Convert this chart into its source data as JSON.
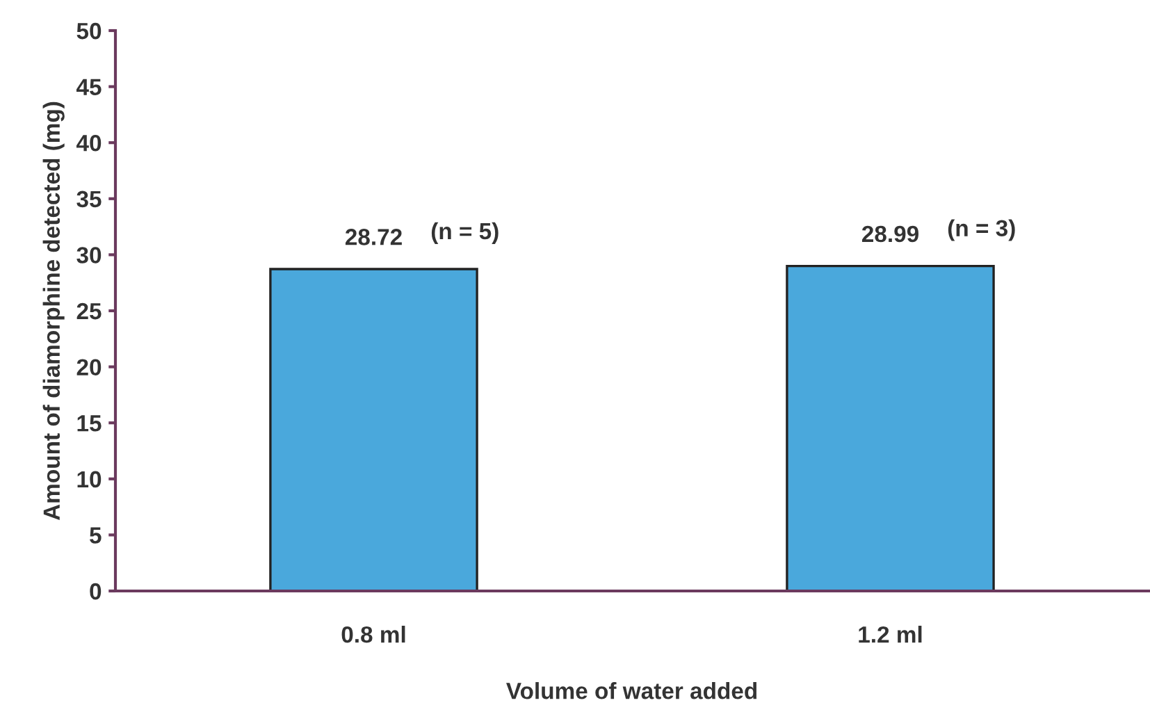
{
  "chart_data": {
    "type": "bar",
    "xlabel": "Volume of water added",
    "ylabel": "Amount of diamorphine detected (mg)",
    "categories": [
      "0.8 ml",
      "1.2 ml"
    ],
    "values": [
      28.72,
      28.99
    ],
    "color": "#4aa8dc",
    "data_labels": true,
    "annotations": [
      {
        "text": "(n = 5)",
        "x": "0.8 ml",
        "y": 28.72
      },
      {
        "text": "(n = 3)",
        "x": "1.2 ml",
        "y": 28.99
      }
    ],
    "ylim": [
      0,
      50
    ],
    "yticks": [
      0,
      5,
      10,
      15,
      20,
      25,
      30,
      35,
      40,
      45,
      50
    ],
    "grid": false,
    "legend": false
  }
}
